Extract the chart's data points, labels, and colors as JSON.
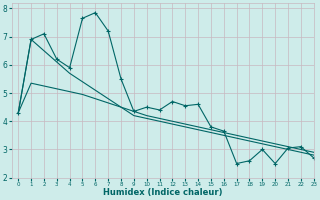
{
  "xlabel": "Humidex (Indice chaleur)",
  "xlim": [
    -0.5,
    23
  ],
  "ylim": [
    2,
    8.2
  ],
  "xticks": [
    0,
    1,
    2,
    3,
    4,
    5,
    6,
    7,
    8,
    9,
    10,
    11,
    12,
    13,
    14,
    15,
    16,
    17,
    18,
    19,
    20,
    21,
    22,
    23
  ],
  "yticks": [
    2,
    3,
    4,
    5,
    6,
    7,
    8
  ],
  "bg_color": "#ceecea",
  "grid_color": "#c8b8c0",
  "line_color": "#006666",
  "line1_x": [
    0,
    1,
    2,
    3,
    4,
    5,
    6,
    7,
    8,
    9,
    10,
    11,
    12,
    13,
    14,
    15,
    16,
    17,
    18,
    19,
    20,
    21,
    22,
    23
  ],
  "line1_y": [
    4.3,
    6.9,
    7.1,
    6.2,
    5.9,
    7.65,
    7.85,
    7.2,
    5.5,
    4.35,
    4.5,
    4.4,
    4.7,
    4.55,
    4.6,
    3.8,
    3.65,
    2.5,
    2.6,
    3.0,
    2.5,
    3.05,
    3.1,
    2.7
  ],
  "line2_x": [
    0,
    1,
    2,
    3,
    4,
    5,
    6,
    7,
    8,
    9,
    10,
    11,
    12,
    13,
    14,
    15,
    16,
    17,
    18,
    19,
    20,
    21,
    22,
    23
  ],
  "line2_y": [
    4.3,
    5.35,
    5.25,
    5.15,
    5.05,
    4.95,
    4.8,
    4.65,
    4.5,
    4.35,
    4.2,
    4.1,
    4.0,
    3.9,
    3.8,
    3.7,
    3.6,
    3.5,
    3.4,
    3.3,
    3.2,
    3.1,
    3.0,
    2.9
  ],
  "line3_x": [
    0,
    1,
    2,
    3,
    4,
    5,
    6,
    7,
    8,
    9,
    10,
    11,
    12,
    13,
    14,
    15,
    16,
    17,
    18,
    19,
    20,
    21,
    22,
    23
  ],
  "line3_y": [
    4.3,
    6.9,
    6.5,
    6.1,
    5.7,
    5.4,
    5.1,
    4.8,
    4.5,
    4.2,
    4.1,
    4.0,
    3.9,
    3.8,
    3.7,
    3.6,
    3.5,
    3.4,
    3.3,
    3.2,
    3.1,
    3.0,
    2.9,
    2.8
  ]
}
